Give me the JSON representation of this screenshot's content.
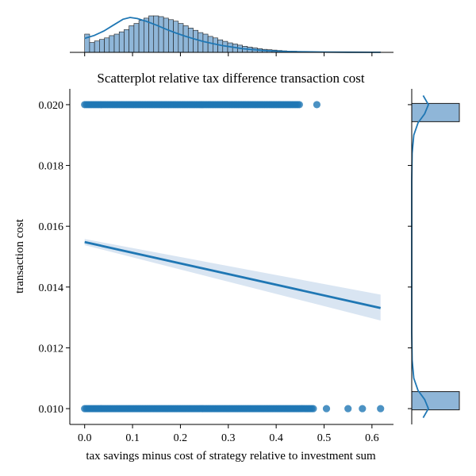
{
  "chart_data": {
    "type": "scatter",
    "title": "Scatterplot relative tax difference transaction cost",
    "xlabel": "tax savings minus cost of strategy relative to investment sum",
    "ylabel": "transaction cost",
    "xlim": [
      -0.031,
      0.645
    ],
    "ylim": [
      0.00948,
      0.02052
    ],
    "xticks": [
      0.0,
      0.1,
      0.2,
      0.3,
      0.4,
      0.5,
      0.6
    ],
    "xtick_labels": [
      "0.0",
      "0.1",
      "0.2",
      "0.3",
      "0.4",
      "0.5",
      "0.6"
    ],
    "yticks": [
      0.01,
      0.012,
      0.014,
      0.016,
      0.018,
      0.02
    ],
    "ytick_labels": [
      "0.010",
      "0.012",
      "0.014",
      "0.016",
      "0.018",
      "0.020"
    ],
    "grid": false,
    "colors": {
      "points": "#1f77b4",
      "hist_fill": "#8fb6d8",
      "line": "#1f77b4",
      "ci_band": "#d2e1f0"
    },
    "scatter_groups": [
      {
        "y": 0.02,
        "dense_range": [
          0.0,
          0.45
        ],
        "outliers": [
          0.485
        ]
      },
      {
        "y": 0.01,
        "dense_range": [
          0.0,
          0.48
        ],
        "outliers": [
          0.505,
          0.55,
          0.58,
          0.618
        ]
      }
    ],
    "regression": {
      "x": [
        0.0,
        0.618
      ],
      "y": [
        0.01548,
        0.01331
      ],
      "ci_lower": [
        0.01538,
        0.0129
      ],
      "ci_upper": [
        0.01558,
        0.01375
      ]
    },
    "marginal_x": {
      "bin_edges_range": [
        0.0,
        0.618
      ],
      "bins": 60,
      "counts": [
        48,
        26,
        30,
        34,
        38,
        44,
        48,
        54,
        60,
        70,
        76,
        84,
        90,
        96,
        96,
        94,
        90,
        86,
        82,
        76,
        70,
        64,
        58,
        52,
        48,
        42,
        38,
        33,
        29,
        25,
        22,
        19,
        16,
        14,
        12,
        10,
        8,
        7,
        6,
        5,
        4,
        3,
        3,
        2,
        2,
        2,
        1,
        1,
        1,
        1,
        1,
        1,
        1,
        0,
        0,
        0,
        0,
        0,
        0,
        1
      ],
      "kde": [
        [
          0.0,
          38
        ],
        [
          0.02,
          46
        ],
        [
          0.04,
          58
        ],
        [
          0.06,
          74
        ],
        [
          0.08,
          90
        ],
        [
          0.095,
          95
        ],
        [
          0.11,
          92
        ],
        [
          0.13,
          84
        ],
        [
          0.15,
          74
        ],
        [
          0.17,
          63
        ],
        [
          0.19,
          53
        ],
        [
          0.21,
          44
        ],
        [
          0.23,
          36
        ],
        [
          0.25,
          29
        ],
        [
          0.27,
          23
        ],
        [
          0.29,
          18
        ],
        [
          0.31,
          14
        ],
        [
          0.33,
          10
        ],
        [
          0.35,
          7.5
        ],
        [
          0.37,
          5.5
        ],
        [
          0.39,
          4
        ],
        [
          0.41,
          3
        ],
        [
          0.43,
          2.2
        ],
        [
          0.46,
          1.5
        ],
        [
          0.5,
          0.9
        ],
        [
          0.55,
          0.5
        ],
        [
          0.6,
          0.3
        ],
        [
          0.618,
          0.2
        ]
      ]
    },
    "marginal_y": {
      "bins": [
        {
          "y_range": [
            0.01944,
            0.02004
          ],
          "count": 1
        },
        {
          "y_range": [
            0.00996,
            0.01056
          ],
          "count": 1
        }
      ],
      "kde": [
        [
          0.0097,
          0.55
        ],
        [
          0.01,
          0.8
        ],
        [
          0.0103,
          0.62
        ],
        [
          0.0106,
          0.3
        ],
        [
          0.011,
          0.1
        ],
        [
          0.0116,
          0.02
        ],
        [
          0.0125,
          0.0
        ],
        [
          0.015,
          0.0
        ],
        [
          0.0175,
          0.0
        ],
        [
          0.0184,
          0.02
        ],
        [
          0.019,
          0.1
        ],
        [
          0.0194,
          0.3
        ],
        [
          0.0197,
          0.62
        ],
        [
          0.02,
          0.8
        ],
        [
          0.0203,
          0.55
        ]
      ]
    }
  }
}
